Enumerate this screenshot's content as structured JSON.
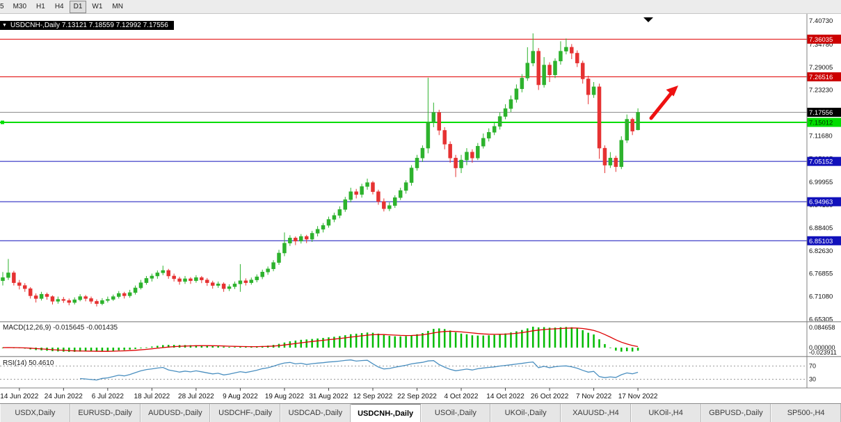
{
  "toolbar": {
    "buttons": [
      {
        "label": "5",
        "active": false
      },
      {
        "label": "M30",
        "active": false
      },
      {
        "label": "H1",
        "active": false
      },
      {
        "label": "H4",
        "active": false
      },
      {
        "label": "D1",
        "active": true
      },
      {
        "label": "W1",
        "active": false
      },
      {
        "label": "MN",
        "active": false
      }
    ]
  },
  "chart_header": {
    "text": "USDCNH-,Daily  7.13121 7.18559 7.12992 7.17556"
  },
  "tabs": {
    "items": [
      {
        "label": "USDX,Daily",
        "active": false
      },
      {
        "label": "EURUSD-,Daily",
        "active": false
      },
      {
        "label": "AUDUSD-,Daily",
        "active": false
      },
      {
        "label": "USDCHF-,Daily",
        "active": false
      },
      {
        "label": "USDCAD-,Daily",
        "active": false
      },
      {
        "label": "USDCNH-,Daily",
        "active": true
      },
      {
        "label": "USOil-,Daily",
        "active": false
      },
      {
        "label": "UKOil-,Daily",
        "active": false
      },
      {
        "label": "XAUUSD-,H4",
        "active": false
      },
      {
        "label": "UKOil-,H4",
        "active": false
      },
      {
        "label": "GBPUSD-,Daily",
        "active": false
      },
      {
        "label": "SP500-,H4",
        "active": false
      }
    ]
  },
  "chart_data": {
    "type": "candlestick",
    "symbol": "USDCNH-",
    "timeframe": "Daily",
    "current_bar": {
      "open": 7.13121,
      "high": 7.18559,
      "low": 7.12992,
      "close": 7.17556
    },
    "x_labels": [
      "14 Jun 2022",
      "24 Jun 2022",
      "6 Jul 2022",
      "18 Jul 2022",
      "28 Jul 2022",
      "9 Aug 2022",
      "19 Aug 2022",
      "31 Aug 2022",
      "12 Sep 2022",
      "22 Sep 2022",
      "4 Oct 2022",
      "14 Oct 2022",
      "26 Oct 2022",
      "7 Nov 2022",
      "17 Nov 2022"
    ],
    "x_first_index": 3,
    "x_step": 8,
    "y_ticks": [
      7.4073,
      7.3478,
      7.29005,
      7.2323,
      7.17455,
      7.1168,
      7.05905,
      6.99955,
      6.9418,
      6.88405,
      6.8263,
      6.76855,
      6.7108,
      6.65305
    ],
    "levels": [
      {
        "price": 7.36035,
        "label": "7.36035",
        "line": "#e00000",
        "box": "#cc0000",
        "text": "#ffffff",
        "width": 1,
        "anchor": false
      },
      {
        "price": 7.26516,
        "label": "7.26516",
        "line": "#e00000",
        "box": "#cc0000",
        "text": "#ffffff",
        "width": 1,
        "anchor": false
      },
      {
        "price": 7.15012,
        "label": "7.15012",
        "line": "#00dd00",
        "box": "#00dd00",
        "text": "#003300",
        "width": 2,
        "anchor": true
      },
      {
        "price": 7.05152,
        "label": "7.05152",
        "line": "#1111bb",
        "box": "#1111bb",
        "text": "#ffffff",
        "width": 1,
        "anchor": false
      },
      {
        "price": 6.94963,
        "label": "6.94963",
        "line": "#1111bb",
        "box": "#1111bb",
        "text": "#ffffff",
        "width": 1,
        "anchor": false
      },
      {
        "price": 6.85103,
        "label": "6.85103",
        "line": "#1111bb",
        "box": "#1111bb",
        "text": "#ffffff",
        "width": 1,
        "anchor": false
      }
    ],
    "current_price": {
      "value": 7.17556,
      "label": "7.17556",
      "box": "#000000",
      "text": "#ffffff"
    },
    "ohlc": [
      [
        6.75,
        6.772,
        6.738,
        6.758
      ],
      [
        6.758,
        6.805,
        6.752,
        6.77
      ],
      [
        6.77,
        6.775,
        6.738,
        6.745
      ],
      [
        6.745,
        6.752,
        6.728,
        6.738
      ],
      [
        6.738,
        6.744,
        6.722,
        6.73
      ],
      [
        6.73,
        6.734,
        6.705,
        6.712
      ],
      [
        6.712,
        6.718,
        6.695,
        6.705
      ],
      [
        6.705,
        6.722,
        6.7,
        6.716
      ],
      [
        6.716,
        6.72,
        6.702,
        6.71
      ],
      [
        6.71,
        6.713,
        6.69,
        6.698
      ],
      [
        6.698,
        6.71,
        6.692,
        6.703
      ],
      [
        6.703,
        6.709,
        6.694,
        6.7
      ],
      [
        6.7,
        6.705,
        6.688,
        6.695
      ],
      [
        6.695,
        6.708,
        6.69,
        6.702
      ],
      [
        6.702,
        6.716,
        6.698,
        6.71
      ],
      [
        6.71,
        6.714,
        6.698,
        6.705
      ],
      [
        6.705,
        6.71,
        6.692,
        6.698
      ],
      [
        6.698,
        6.703,
        6.685,
        6.692
      ],
      [
        6.692,
        6.706,
        6.688,
        6.7
      ],
      [
        6.7,
        6.71,
        6.695,
        6.703
      ],
      [
        6.703,
        6.715,
        6.699,
        6.71
      ],
      [
        6.71,
        6.724,
        6.705,
        6.718
      ],
      [
        6.718,
        6.722,
        6.705,
        6.712
      ],
      [
        6.712,
        6.727,
        6.707,
        6.72
      ],
      [
        6.72,
        6.738,
        6.715,
        6.732
      ],
      [
        6.732,
        6.752,
        6.728,
        6.745
      ],
      [
        6.745,
        6.762,
        6.74,
        6.756
      ],
      [
        6.756,
        6.768,
        6.748,
        6.762
      ],
      [
        6.762,
        6.776,
        6.755,
        6.77
      ],
      [
        6.77,
        6.788,
        6.764,
        6.776
      ],
      [
        6.776,
        6.78,
        6.755,
        6.762
      ],
      [
        6.762,
        6.768,
        6.748,
        6.755
      ],
      [
        6.755,
        6.76,
        6.74,
        6.748
      ],
      [
        6.748,
        6.762,
        6.742,
        6.755
      ],
      [
        6.755,
        6.759,
        6.742,
        6.75
      ],
      [
        6.75,
        6.764,
        6.745,
        6.758
      ],
      [
        6.758,
        6.762,
        6.744,
        6.752
      ],
      [
        6.752,
        6.757,
        6.737,
        6.745
      ],
      [
        6.745,
        6.75,
        6.73,
        6.738
      ],
      [
        6.738,
        6.748,
        6.732,
        6.742
      ],
      [
        6.742,
        6.746,
        6.722,
        6.73
      ],
      [
        6.73,
        6.741,
        6.724,
        6.735
      ],
      [
        6.735,
        6.748,
        6.729,
        6.742
      ],
      [
        6.742,
        6.792,
        6.722,
        6.75
      ],
      [
        6.75,
        6.756,
        6.738,
        6.745
      ],
      [
        6.745,
        6.758,
        6.74,
        6.752
      ],
      [
        6.752,
        6.766,
        6.746,
        6.76
      ],
      [
        6.76,
        6.778,
        6.754,
        6.772
      ],
      [
        6.772,
        6.786,
        6.765,
        6.78
      ],
      [
        6.78,
        6.802,
        6.774,
        6.796
      ],
      [
        6.796,
        6.828,
        6.79,
        6.82
      ],
      [
        6.82,
        6.872,
        6.812,
        6.845
      ],
      [
        6.845,
        6.865,
        6.838,
        6.858
      ],
      [
        6.858,
        6.862,
        6.84,
        6.85
      ],
      [
        6.85,
        6.868,
        6.844,
        6.862
      ],
      [
        6.862,
        6.866,
        6.845,
        6.855
      ],
      [
        6.855,
        6.876,
        6.848,
        6.87
      ],
      [
        6.87,
        6.888,
        6.862,
        6.88
      ],
      [
        6.88,
        6.896,
        6.872,
        6.89
      ],
      [
        6.89,
        6.912,
        6.884,
        6.905
      ],
      [
        6.905,
        6.922,
        6.898,
        6.915
      ],
      [
        6.915,
        6.938,
        6.908,
        6.93
      ],
      [
        6.93,
        6.962,
        6.924,
        6.955
      ],
      [
        6.955,
        6.985,
        6.948,
        6.975
      ],
      [
        6.975,
        6.982,
        6.958,
        6.968
      ],
      [
        6.968,
        6.995,
        6.96,
        6.988
      ],
      [
        6.988,
        7.008,
        6.98,
        6.998
      ],
      [
        6.998,
        7.002,
        6.968,
        6.975
      ],
      [
        6.975,
        6.98,
        6.942,
        6.95
      ],
      [
        6.95,
        6.958,
        6.925,
        6.932
      ],
      [
        6.932,
        6.948,
        6.926,
        6.94
      ],
      [
        6.94,
        6.966,
        6.934,
        6.96
      ],
      [
        6.96,
        6.985,
        6.954,
        6.978
      ],
      [
        6.978,
        7.004,
        6.97,
        6.998
      ],
      [
        6.998,
        7.042,
        6.99,
        7.035
      ],
      [
        7.035,
        7.068,
        7.028,
        7.06
      ],
      [
        7.06,
        7.092,
        7.05,
        7.085
      ],
      [
        7.085,
        7.263,
        7.072,
        7.15
      ],
      [
        7.15,
        7.2,
        7.138,
        7.175
      ],
      [
        7.175,
        7.182,
        7.118,
        7.13
      ],
      [
        7.13,
        7.138,
        7.082,
        7.095
      ],
      [
        7.095,
        7.102,
        7.048,
        7.06
      ],
      [
        7.06,
        7.068,
        7.012,
        7.035
      ],
      [
        7.035,
        7.068,
        7.022,
        7.055
      ],
      [
        7.055,
        7.085,
        7.042,
        7.075
      ],
      [
        7.075,
        7.082,
        7.048,
        7.06
      ],
      [
        7.06,
        7.098,
        7.055,
        7.09
      ],
      [
        7.09,
        7.122,
        7.084,
        7.11
      ],
      [
        7.11,
        7.135,
        7.102,
        7.125
      ],
      [
        7.125,
        7.15,
        7.118,
        7.14
      ],
      [
        7.14,
        7.175,
        7.132,
        7.165
      ],
      [
        7.165,
        7.196,
        7.158,
        7.185
      ],
      [
        7.185,
        7.218,
        7.176,
        7.208
      ],
      [
        7.208,
        7.246,
        7.2,
        7.235
      ],
      [
        7.235,
        7.272,
        7.226,
        7.262
      ],
      [
        7.262,
        7.34,
        7.255,
        7.3
      ],
      [
        7.3,
        7.375,
        7.292,
        7.33
      ],
      [
        7.33,
        7.338,
        7.232,
        7.245
      ],
      [
        7.245,
        7.315,
        7.238,
        7.295
      ],
      [
        7.295,
        7.302,
        7.252,
        7.27
      ],
      [
        7.27,
        7.312,
        7.262,
        7.305
      ],
      [
        7.305,
        7.355,
        7.296,
        7.33
      ],
      [
        7.33,
        7.362,
        7.322,
        7.34
      ],
      [
        7.34,
        7.348,
        7.31,
        7.325
      ],
      [
        7.325,
        7.332,
        7.29,
        7.3
      ],
      [
        7.3,
        7.306,
        7.248,
        7.26
      ],
      [
        7.26,
        7.268,
        7.196,
        7.22
      ],
      [
        7.22,
        7.252,
        7.212,
        7.24
      ],
      [
        7.24,
        7.248,
        7.058,
        7.085
      ],
      [
        7.085,
        7.092,
        7.022,
        7.042
      ],
      [
        7.042,
        7.075,
        7.035,
        7.06
      ],
      [
        7.06,
        7.066,
        7.025,
        7.038
      ],
      [
        7.038,
        7.115,
        7.032,
        7.105
      ],
      [
        7.105,
        7.17,
        7.098,
        7.158
      ],
      [
        7.158,
        7.162,
        7.118,
        7.128
      ],
      [
        7.13121,
        7.18559,
        7.12992,
        7.17556
      ]
    ],
    "macd": {
      "label": "MACD(12,26,9)  -0.015645 -0.001435",
      "main_value": -0.015645,
      "signal_value": -0.001435,
      "axis_labels": [
        "0.084658",
        "0.000000",
        "-0.023911"
      ]
    },
    "rsi": {
      "label": "RSI(14)  50.4610",
      "value": 50.461,
      "levels": [
        70,
        30
      ]
    },
    "colors": {
      "up": "#2db22d",
      "down": "#e63232",
      "macd_hist": "#00bb00",
      "macd_signal": "#dd0000",
      "rsi_line": "#4a8fc0",
      "bid_line": "#8c8c8c",
      "arrow": "#ee1111",
      "grid_level_blue": "#1111bb",
      "grid_level_red": "#e00000",
      "grid_level_green": "#00dd00"
    }
  }
}
